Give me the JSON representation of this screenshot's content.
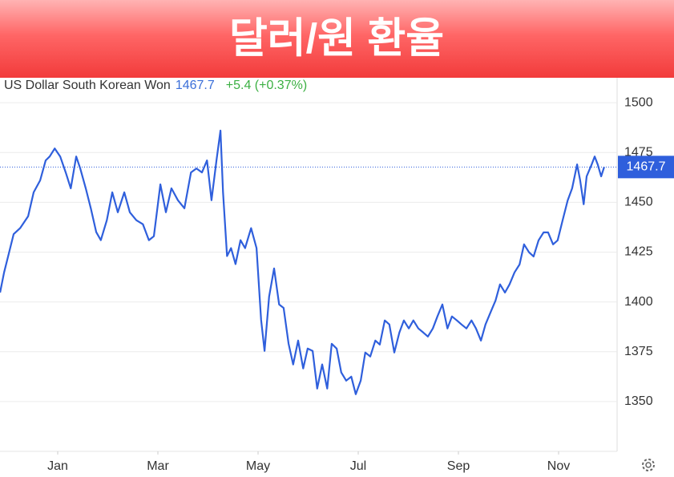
{
  "title": "달러/원 환율",
  "chart_data": {
    "type": "line",
    "subtitle": "US Dollar South Korean Won",
    "last_value": 1467.7,
    "change": "+5.4 (+0.37%)",
    "color": "#2f5fdc",
    "x": [
      -0.15,
      -0.07,
      0.01,
      0.12,
      0.25,
      0.41,
      0.52,
      0.65,
      0.76,
      0.84,
      0.94,
      1.05,
      1.16,
      1.26,
      1.37,
      1.45,
      1.56,
      1.66,
      1.77,
      1.86,
      1.98,
      2.09,
      2.2,
      2.33,
      2.44,
      2.57,
      2.7,
      2.82,
      2.92,
      3.05,
      3.16,
      3.27,
      3.4,
      3.53,
      3.66,
      3.77,
      3.88,
      3.98,
      4.07,
      4.17,
      4.25,
      4.3,
      4.38,
      4.46,
      4.55,
      4.65,
      4.74,
      4.86,
      4.97,
      5.06,
      5.13,
      5.22,
      5.32,
      5.42,
      5.51,
      5.61,
      5.7,
      5.8,
      5.9,
      5.99,
      6.09,
      6.18,
      6.28,
      6.38,
      6.47,
      6.57,
      6.66,
      6.76,
      6.86,
      6.95,
      7.05,
      7.14,
      7.24,
      7.34,
      7.43,
      7.53,
      7.62,
      7.72,
      7.82,
      7.91,
      8.01,
      8.1,
      8.2,
      8.3,
      8.39,
      8.49,
      8.58,
      8.68,
      8.78,
      8.87,
      8.97,
      9.06,
      9.16,
      9.26,
      9.35,
      9.45,
      9.54,
      9.64,
      9.74,
      9.83,
      9.93,
      10.02,
      10.12,
      10.22,
      10.31,
      10.41,
      10.5,
      10.6,
      10.7,
      10.79,
      10.89,
      10.98,
      11.08,
      11.18,
      11.27,
      11.37,
      11.43,
      11.5,
      11.56,
      11.66,
      11.72,
      11.78,
      11.85,
      11.91
    ],
    "values": [
      1404.7,
      1414.8,
      1422.8,
      1434,
      1437,
      1443,
      1455,
      1461,
      1471,
      1473,
      1477,
      1473,
      1465,
      1457,
      1473,
      1467,
      1457,
      1447,
      1435,
      1431,
      1441,
      1455,
      1445,
      1455,
      1445,
      1441,
      1439,
      1431,
      1433,
      1459,
      1445,
      1457,
      1451,
      1447,
      1465,
      1467,
      1465,
      1471,
      1451,
      1471,
      1486,
      1455,
      1423,
      1427,
      1419,
      1431,
      1427,
      1437,
      1427,
      1391,
      1375.4,
      1402.7,
      1416.8,
      1398.7,
      1397,
      1379,
      1368.6,
      1380.6,
      1366.6,
      1376.6,
      1375.4,
      1356.5,
      1368.6,
      1356.5,
      1379,
      1376.6,
      1364.6,
      1360.5,
      1362.5,
      1353.7,
      1360.5,
      1374.6,
      1372.6,
      1380.6,
      1378.6,
      1390.7,
      1388.7,
      1374.6,
      1384.6,
      1390.7,
      1386.7,
      1390.7,
      1386.7,
      1384.6,
      1382.6,
      1386.7,
      1392.7,
      1398.7,
      1386.7,
      1392.7,
      1390.7,
      1388.7,
      1386.7,
      1390.7,
      1386.7,
      1380.6,
      1388.7,
      1394.7,
      1400.7,
      1408.8,
      1404.7,
      1408.8,
      1414.8,
      1418.8,
      1428.9,
      1424.9,
      1422.8,
      1430.9,
      1434.9,
      1434.9,
      1428.9,
      1430.9,
      1440.9,
      1450.9,
      1457,
      1469,
      1461,
      1449,
      1463,
      1469,
      1473,
      1469,
      1463,
      1467.7
    ],
    "xlim": [
      -0.152,
      12.168
    ],
    "xticks": [
      {
        "value": 1,
        "label": "Jan"
      },
      {
        "value": 3,
        "label": "Mar"
      },
      {
        "value": 5,
        "label": "May"
      },
      {
        "value": 7,
        "label": "Jul"
      },
      {
        "value": 9,
        "label": "Sep"
      },
      {
        "value": 11,
        "label": "Nov"
      }
    ],
    "ylim": [
      1325,
      1512.5
    ],
    "yticks": [
      1350,
      1375,
      1400,
      1425,
      1450,
      1475,
      1500
    ],
    "grid": true
  }
}
